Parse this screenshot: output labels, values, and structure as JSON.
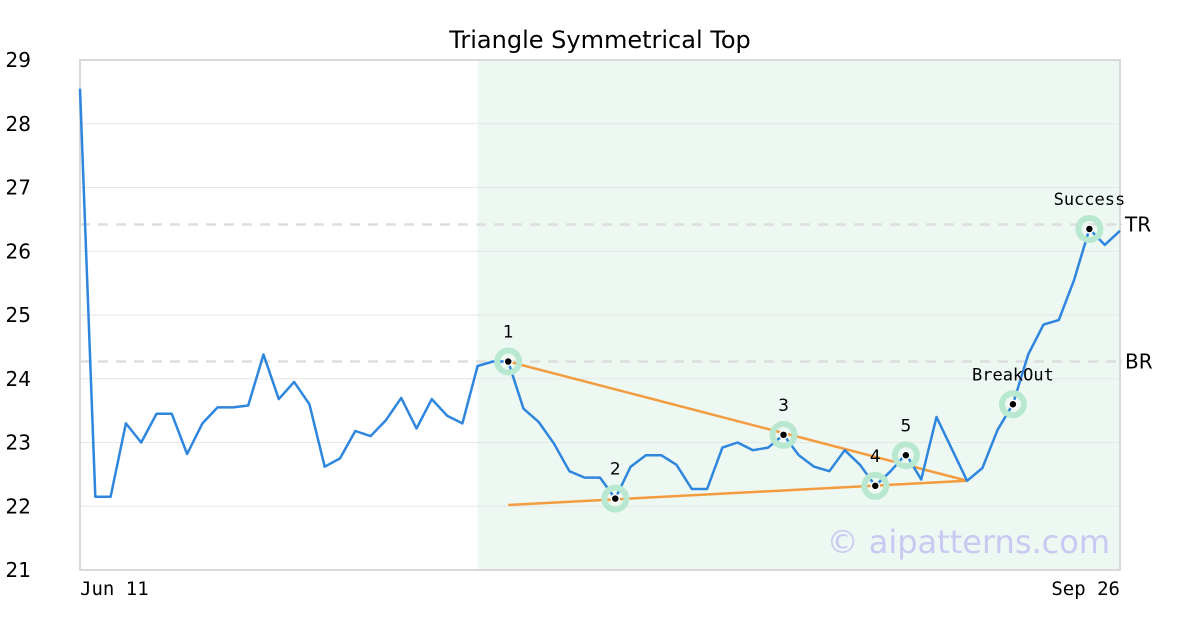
{
  "chart_data": {
    "type": "line",
    "title": "Triangle Symmetrical Top",
    "xlabel": "",
    "ylabel": "",
    "x_tick_labels": [
      "Jun 11",
      "Sep 26"
    ],
    "y_ticks": [
      21,
      22,
      23,
      24,
      25,
      26,
      27,
      28,
      29
    ],
    "ylim": [
      21,
      29
    ],
    "xlim": [
      0,
      68
    ],
    "grid": true,
    "pattern_span": [
      26,
      68
    ],
    "series": [
      {
        "color": "#2e86de",
        "values": [
          28.55,
          22.15,
          22.15,
          23.3,
          23.0,
          23.45,
          23.45,
          22.82,
          23.3,
          23.55,
          23.55,
          23.58,
          24.38,
          23.68,
          23.95,
          23.6,
          22.62,
          22.75,
          23.18,
          23.1,
          23.35,
          23.7,
          23.22,
          23.68,
          23.42,
          23.3,
          24.2,
          24.27,
          24.27,
          23.53,
          23.32,
          22.98,
          22.55,
          22.45,
          22.45,
          22.12,
          22.62,
          22.8,
          22.8,
          22.65,
          22.27,
          22.27,
          22.92,
          23.0,
          22.88,
          22.92,
          23.12,
          22.8,
          22.62,
          22.55,
          22.88,
          22.65,
          22.32,
          22.55,
          22.82,
          22.42,
          23.4,
          22.9,
          22.4,
          22.6,
          23.2,
          23.6,
          24.38,
          24.85,
          24.92,
          25.55,
          26.35,
          26.1,
          26.32
        ]
      }
    ],
    "levels": [
      {
        "label": "TR",
        "value": 26.42
      },
      {
        "label": "BR",
        "value": 24.27
      }
    ],
    "trendlines": [
      {
        "color": "#f39c3f",
        "points": [
          [
            28,
            24.27
          ],
          [
            58,
            22.4
          ]
        ]
      },
      {
        "color": "#f39c3f",
        "points": [
          [
            28,
            22.02
          ],
          [
            58,
            22.4
          ]
        ]
      }
    ],
    "points": [
      {
        "label": "1",
        "x": 28,
        "y": 24.27,
        "label_pos": "above"
      },
      {
        "label": "2",
        "x": 35,
        "y": 22.12,
        "label_pos": "above"
      },
      {
        "label": "3",
        "x": 46,
        "y": 23.12,
        "label_pos": "above"
      },
      {
        "label": "4",
        "x": 52,
        "y": 22.32,
        "label_pos": "above-left"
      },
      {
        "label": "5",
        "x": 54,
        "y": 22.8,
        "label_pos": "above"
      },
      {
        "label": "BreakOut",
        "x": 61,
        "y": 23.6,
        "label_pos": "above"
      },
      {
        "label": "Success",
        "x": 66,
        "y": 26.35,
        "label_pos": "above"
      }
    ],
    "colors": {
      "line": "#2e86de",
      "trendline": "#f39c3f",
      "pattern_band": "#eef8f3",
      "point_halo": "#b8e8d0",
      "level_line": "#dddddd",
      "grid": "#e6e6e6",
      "frame": "#d9d9d9"
    }
  },
  "watermark": "© aipatterns.com"
}
